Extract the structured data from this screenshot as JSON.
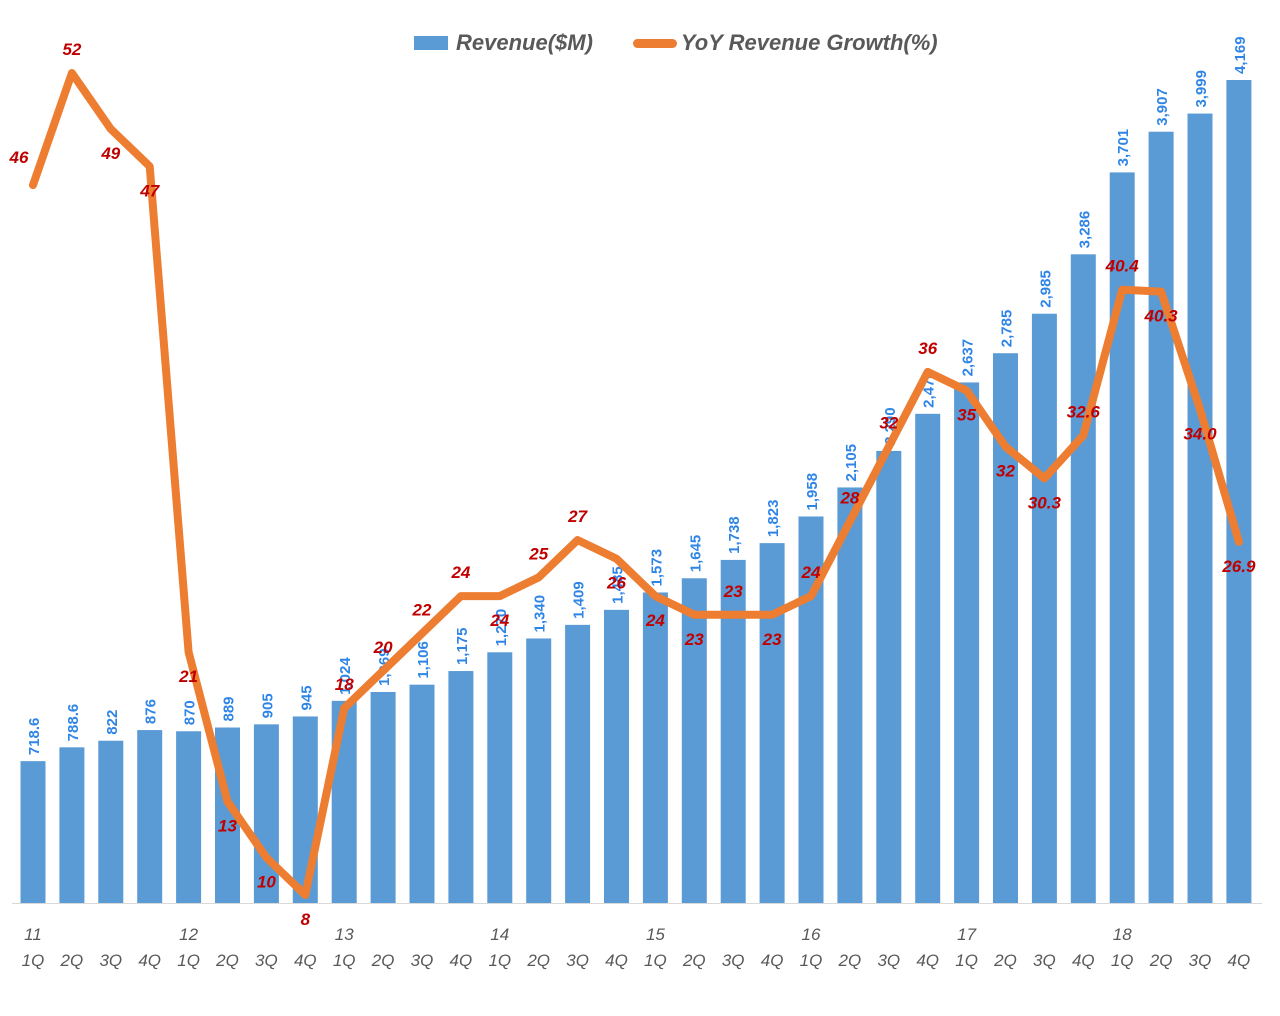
{
  "colors": {
    "bar": "#5B9BD5",
    "line": "#ED7D31",
    "bar_label": "#2F85E6",
    "line_label": "#C00000",
    "axis_text": "#595959"
  },
  "legend": {
    "revenue": "Revenue($M)",
    "growth": "YoY Revenue Growth(%)"
  },
  "chart_data": {
    "type": "bar",
    "title": "",
    "xlabel": "",
    "ylabel": "",
    "legend_position": "top-center",
    "grid": false,
    "years": [
      {
        "label": "11",
        "start_index": 0
      },
      {
        "label": "12",
        "start_index": 4
      },
      {
        "label": "13",
        "start_index": 8
      },
      {
        "label": "14",
        "start_index": 12
      },
      {
        "label": "15",
        "start_index": 16
      },
      {
        "label": "16",
        "start_index": 20
      },
      {
        "label": "17",
        "start_index": 24
      },
      {
        "label": "18",
        "start_index": 28
      }
    ],
    "categories": [
      "1Q",
      "2Q",
      "3Q",
      "4Q",
      "1Q",
      "2Q",
      "3Q",
      "4Q",
      "1Q",
      "2Q",
      "3Q",
      "4Q",
      "1Q",
      "2Q",
      "3Q",
      "4Q",
      "1Q",
      "2Q",
      "3Q",
      "4Q",
      "1Q",
      "2Q",
      "3Q",
      "4Q",
      "1Q",
      "2Q",
      "3Q",
      "4Q",
      "1Q",
      "2Q",
      "3Q",
      "4Q"
    ],
    "series": [
      {
        "name": "Revenue($M)",
        "type": "bar",
        "ylim": [
          0,
          4600
        ],
        "values": [
          718.6,
          788.6,
          822,
          876,
          870,
          889,
          905,
          945,
          1024,
          1069,
          1106,
          1175,
          1270,
          1340,
          1409,
          1485,
          1573,
          1645,
          1738,
          1823,
          1958,
          2105,
          2290,
          2478,
          2637,
          2785,
          2985,
          3286,
          3701,
          3907,
          3999,
          4169
        ],
        "labels": [
          "718.6",
          "788.6",
          "822",
          "876",
          "870",
          "889",
          "905",
          "945",
          "1,024",
          "1,069",
          "1,106",
          "1,175",
          "1,270",
          "1,340",
          "1,409",
          "1,485",
          "1,573",
          "1,645",
          "1,738",
          "1,823",
          "1,958",
          "2,105",
          "2,290",
          "2,478",
          "2,637",
          "2,785",
          "2,985",
          "3,286",
          "3,701",
          "3,907",
          "3,999",
          "4,169"
        ]
      },
      {
        "name": "YoY Revenue Growth(%)",
        "type": "line",
        "ylim": [
          8,
          52
        ],
        "values": [
          46,
          52,
          49,
          47,
          21,
          13,
          10,
          8,
          18,
          20,
          22,
          24,
          24,
          25,
          27,
          26,
          24,
          23,
          23,
          23,
          24,
          28,
          32,
          36,
          35,
          32,
          30.3,
          32.6,
          40.4,
          40.3,
          34.0,
          26.9
        ],
        "labels": [
          "46",
          "52",
          "49",
          "47",
          "21",
          "13",
          "10",
          "8",
          "18",
          "20",
          "22",
          "24",
          "24",
          "25",
          "27",
          "26",
          "24",
          "23",
          "23",
          "23",
          "24",
          "28",
          "32",
          "36",
          "35",
          "32",
          "30.3",
          "32.6",
          "40.4",
          "40.3",
          "34.0",
          "26.9"
        ]
      }
    ]
  }
}
